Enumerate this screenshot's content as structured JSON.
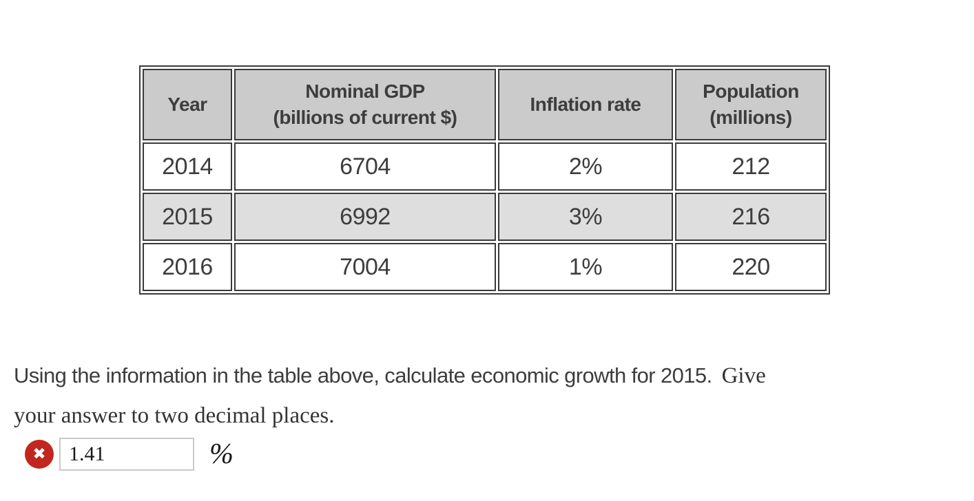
{
  "table": {
    "headers": [
      {
        "line1": "Year",
        "line2": ""
      },
      {
        "line1": "Nominal GDP",
        "line2": "(billions of current $)"
      },
      {
        "line1": "Inflation rate",
        "line2": ""
      },
      {
        "line1": "Population",
        "line2": "(millions)"
      }
    ],
    "rows": [
      {
        "year": "2014",
        "gdp": "6704",
        "inflation": "2%",
        "population": "212"
      },
      {
        "year": "2015",
        "gdp": "6992",
        "inflation": "3%",
        "population": "216"
      },
      {
        "year": "2016",
        "gdp": "7004",
        "inflation": "1%",
        "population": "220"
      }
    ]
  },
  "question": {
    "line1_sans": "Using the information in the table above, calculate economic growth for 2015.",
    "line1_serif": "Give",
    "line2_serif": "your answer to two decimal places."
  },
  "answer": {
    "value": "1.41",
    "unit": "%"
  },
  "icons": {
    "error_x": "✖"
  },
  "colors": {
    "table_border": "#3a3a3a",
    "header_bg": "#cbcbcb",
    "alt_row_bg": "#dedede",
    "table_text": "#3d3d3d",
    "error_red": "#c1271e",
    "input_border": "#c9c9c9"
  }
}
